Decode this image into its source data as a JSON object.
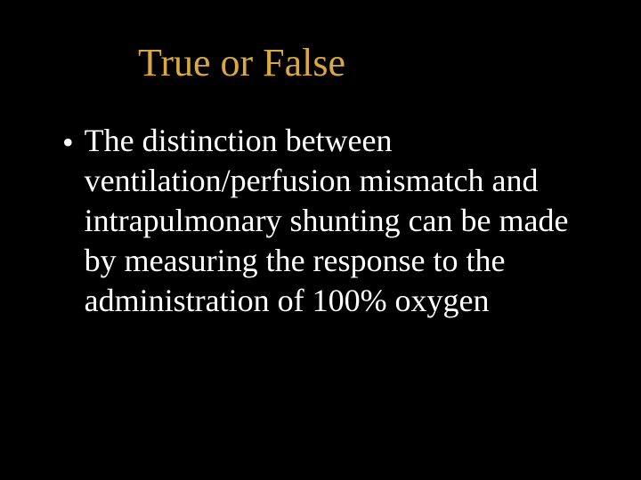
{
  "slide": {
    "title": "True or False",
    "bullet_marker": "•",
    "body_text": "The distinction between ventilation/perfusion mismatch and intrapulmonary shunting can be made by measuring the response to the administration of 100% oxygen",
    "colors": {
      "background": "#000000",
      "title_color": "#d9a940",
      "body_color": "#ffffff"
    },
    "typography": {
      "title_fontsize": 44,
      "body_fontsize": 36,
      "font_family": "Georgia, serif",
      "line_height": 1.25
    }
  }
}
